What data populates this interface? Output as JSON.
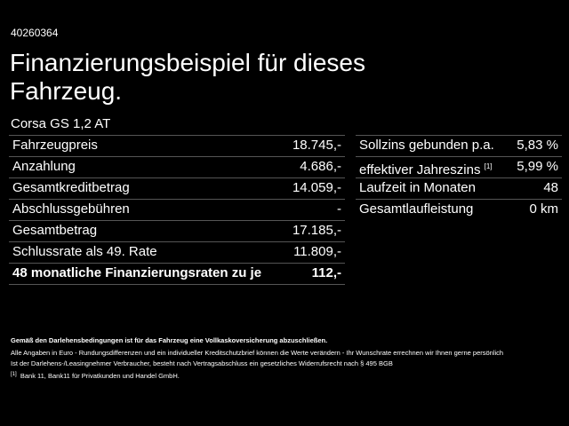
{
  "header": {
    "id": "40260364",
    "title_lines": [
      "Finanzierungsbeispiel für dieses",
      "Fahrzeug."
    ],
    "model": "Corsa GS 1,2 AT"
  },
  "left_table": {
    "rows": [
      {
        "label": "Fahrzeugpreis",
        "value": "18.745,-"
      },
      {
        "label": "Anzahlung",
        "value": "4.686,-"
      },
      {
        "label": "Gesamtkreditbetrag",
        "value": "14.059,-"
      },
      {
        "label": "Abschlussgebühren",
        "value": "-"
      },
      {
        "label": "Gesamtbetrag",
        "value": "17.185,-"
      },
      {
        "label": "Schlussrate als 49. Rate",
        "value": "11.809,-"
      },
      {
        "label": "48 monatliche Finanzierungsraten zu je",
        "value": "112,-"
      }
    ]
  },
  "right_table": {
    "rows": [
      {
        "label": "Sollzins gebunden p.a.",
        "value": "5,83 %"
      },
      {
        "label": "effektiver Jahreszins",
        "note": "[1]",
        "value": "5,99 %"
      },
      {
        "label": "Laufzeit in Monaten",
        "value": "48"
      },
      {
        "label": "Gesamtlaufleistung",
        "value": "0 km"
      }
    ]
  },
  "footer": {
    "insurance": "Gemäß den Darlehensbedingungen ist für das Fahrzeug eine Vollkaskoversicherung abzuschließen.",
    "disclaimer_lines": [
      "Alle Angaben in Euro - Rundungsdifferenzen und ein individueller Kreditschutzbrief können die Werte verändern - Ihr Wunschrate errechnen wir Ihnen gerne persönlich",
      "Ist der Darlehens-/Leasingnehmer Verbraucher, besteht nach Vertragsabschluss ein gesetzliches Widerrufsrecht nach § 495 BGB"
    ],
    "footnote_mark": "[1]",
    "footnote": "Bank 11, Bank11 für Privatkunden und Handel GmbH."
  }
}
